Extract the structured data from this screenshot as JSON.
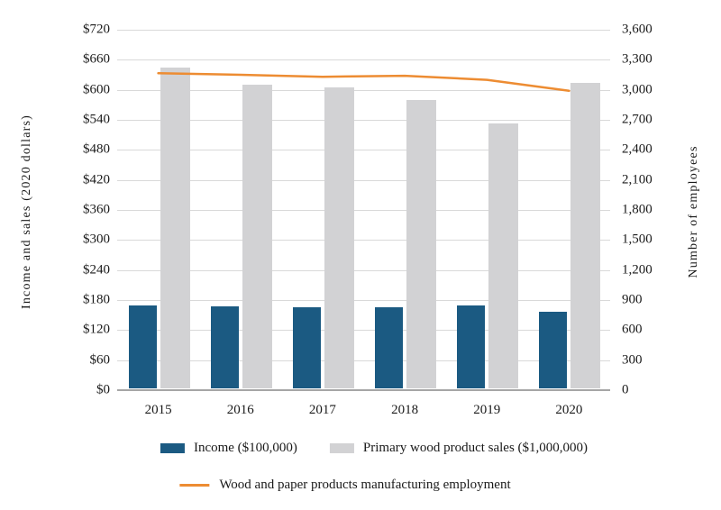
{
  "chart_data": {
    "type": "bar",
    "subtype": "grouped-bars-with-line-overlay",
    "categories": [
      "2015",
      "2016",
      "2017",
      "2018",
      "2019",
      "2020"
    ],
    "series": [
      {
        "name": "Income ($100,000)",
        "type": "bar",
        "axis": "left",
        "color": "#1B5A82",
        "values": [
          166,
          164,
          162,
          162,
          166,
          153
        ]
      },
      {
        "name": "Primary wood product sales ($1,000,000)",
        "type": "bar",
        "axis": "left",
        "color": "#D2D2D4",
        "values": [
          641,
          607,
          601,
          576,
          529,
          610
        ]
      },
      {
        "name": "Wood and paper products manufacturing employment",
        "type": "line",
        "axis": "right",
        "color": "#ED8C32",
        "values": [
          3165,
          3150,
          3130,
          3140,
          3100,
          2990
        ]
      }
    ],
    "left_axis": {
      "label": "Income and sales (2020 dollars)",
      "min": 0,
      "max": 720,
      "tick_step": 60,
      "ticks": [
        "$720",
        "$660",
        "$600",
        "$540",
        "$480",
        "$420",
        "$360",
        "$300",
        "$240",
        "$180",
        "$120",
        "$60",
        "$0"
      ]
    },
    "right_axis": {
      "label": "Number of employees",
      "min": 0,
      "max": 3600,
      "tick_step": 300,
      "ticks": [
        "3,600",
        "3,300",
        "3,000",
        "2,700",
        "2,400",
        "2,100",
        "1,800",
        "1,500",
        "1,200",
        "900",
        "600",
        "300",
        "0"
      ]
    },
    "grid": "horizontal",
    "legend_position": "bottom",
    "colors": {
      "gridline": "#D9D9D9",
      "baseline": "#A6A6A6",
      "text": "#1A1A1A",
      "background": "#FFFFFF"
    }
  }
}
